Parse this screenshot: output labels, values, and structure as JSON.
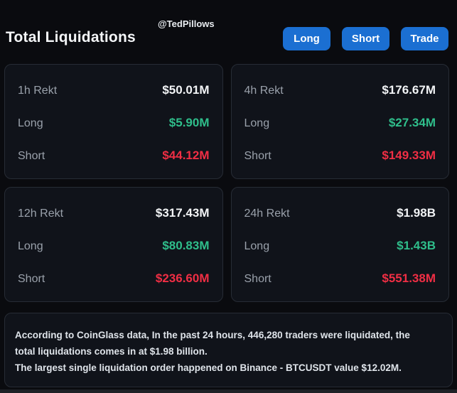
{
  "header": {
    "title": "Total Liquidations",
    "watermark": "@TedPillows",
    "buttons": [
      {
        "label": "Long"
      },
      {
        "label": "Short"
      },
      {
        "label": "Trade"
      }
    ]
  },
  "cards": [
    {
      "title": "1h Rekt",
      "total": "$50.01M",
      "long_label": "Long",
      "long_value": "$5.90M",
      "short_label": "Short",
      "short_value": "$44.12M"
    },
    {
      "title": "4h Rekt",
      "total": "$176.67M",
      "long_label": "Long",
      "long_value": "$27.34M",
      "short_label": "Short",
      "short_value": "$149.33M"
    },
    {
      "title": "12h Rekt",
      "total": "$317.43M",
      "long_label": "Long",
      "long_value": "$80.83M",
      "short_label": "Short",
      "short_value": "$236.60M"
    },
    {
      "title": "24h Rekt",
      "total": "$1.98B",
      "long_label": "Long",
      "long_value": "$1.43B",
      "short_label": "Short",
      "short_value": "$551.38M"
    }
  ],
  "footer": {
    "lines": [
      "According to CoinGlass data, In the past 24 hours, 446,280 traders were liquidated, the",
      "total liquidations comes in at $1.98 billion.",
      "The largest single liquidation order happened on Binance - BTCUSDT value $12.02M."
    ]
  },
  "colors": {
    "background": "#0a0b0f",
    "card_background": "#10131a",
    "card_border": "#272c35",
    "accent_blue": "#1b6fd2",
    "long_green": "#2fbe8b",
    "short_red": "#f02e44",
    "label_gray": "#9aa1ab",
    "text_white": "#f2f4f6"
  }
}
